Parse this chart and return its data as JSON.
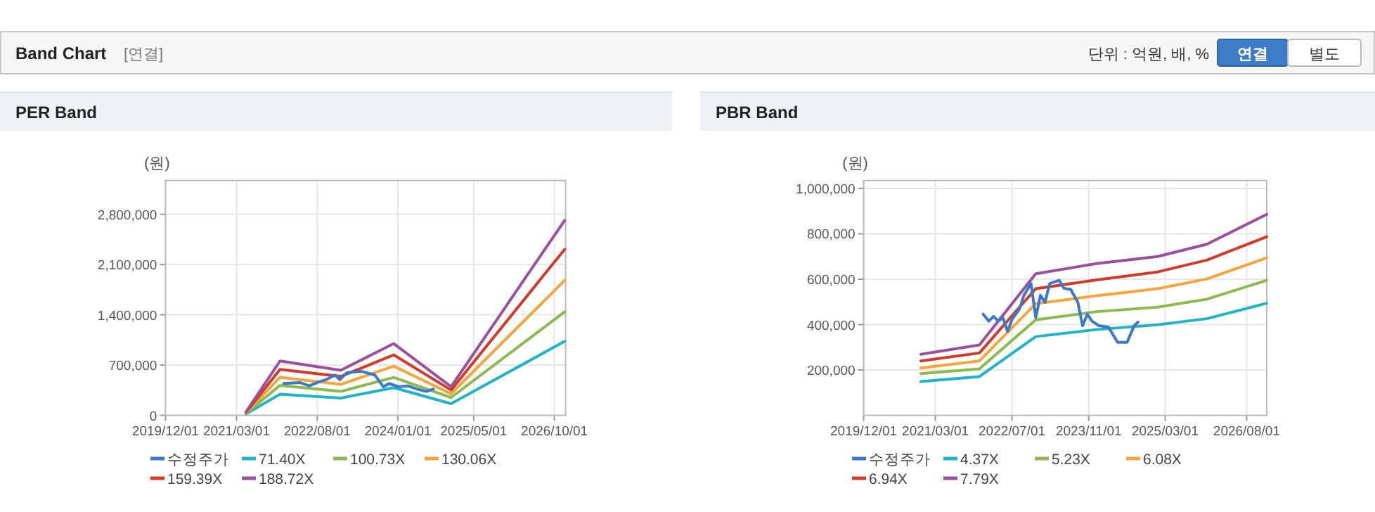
{
  "chart_data": [
    {
      "type": "other",
      "title": "Band Chart",
      "subtitle": "[연결]",
      "annotations": [
        "단위 : 억원, 배, %",
        "연결",
        "별도"
      ]
    },
    {
      "type": "line",
      "title": "PER Band",
      "ylabel": "(원)",
      "grid": true,
      "legend": "bottom",
      "line_style": "solid",
      "xlim": [
        "2019-12-01",
        "2026-12-12"
      ],
      "xticks": [
        {
          "value": "2019-12-01",
          "label": "2019/12/01"
        },
        {
          "value": "2021-03-01",
          "label": "2021/03/01"
        },
        {
          "value": "2022-08-01",
          "label": "2022/08/01"
        },
        {
          "value": "2024-01-01",
          "label": "2024/01/01"
        },
        {
          "value": "2025-05-01",
          "label": "2025/05/01"
        },
        {
          "value": "2026-10-01",
          "label": "2026/10/01"
        }
      ],
      "ylim": [
        0,
        3270000
      ],
      "yticks": [
        0,
        {
          "value": 700000,
          "label": "700,000"
        },
        {
          "value": 1400000,
          "label": "1,400,000"
        },
        {
          "value": 2100000,
          "label": "2,100,000"
        },
        {
          "value": 2800000,
          "label": "2,800,000"
        }
      ],
      "series": [
        {
          "name": "수정주가",
          "color": "#3a78c9",
          "x": [
            "2021-12-28",
            "2022-04-12",
            "2022-06-11",
            "2022-08-10",
            "2022-09-25",
            "2022-11-24",
            "2022-12-24",
            "2023-02-07",
            "2023-05-08",
            "2023-08-06",
            "2023-09-29",
            "2023-11-05",
            "2024-01-04",
            "2024-03-04",
            "2024-05-03",
            "2024-07-02",
            "2024-08-16"
          ],
          "values": [
            444000,
            457000,
            411000,
            464000,
            496000,
            561000,
            496000,
            594000,
            614000,
            561000,
            398000,
            444000,
            398000,
            411000,
            366000,
            333000,
            366000
          ]
        },
        {
          "name": "71.40X",
          "color": "#1fb5c8",
          "x": [
            "2021-05-01",
            "2021-12-05",
            "2022-12-30",
            "2023-12-05",
            "2024-12-07",
            "2026-12-06"
          ],
          "values": [
            20000,
            294000,
            241000,
            385000,
            163000,
            1031000
          ]
        },
        {
          "name": "100.73X",
          "color": "#8bbb4f",
          "x": [
            "2021-05-01",
            "2021-12-05",
            "2022-12-30",
            "2023-12-05",
            "2024-12-07",
            "2026-12-06"
          ],
          "values": [
            28000,
            418000,
            333000,
            529000,
            248000,
            1442000
          ]
        },
        {
          "name": "130.06X",
          "color": "#f5a53a",
          "x": [
            "2021-05-01",
            "2021-12-05",
            "2022-12-30",
            "2023-12-05",
            "2024-12-07",
            "2026-12-06"
          ],
          "values": [
            35000,
            529000,
            431000,
            685000,
            300000,
            1880000
          ]
        },
        {
          "name": "159.39X",
          "color": "#d33a2a",
          "x": [
            "2021-05-01",
            "2021-12-05",
            "2022-12-30",
            "2023-12-05",
            "2024-12-07",
            "2026-12-06"
          ],
          "values": [
            42000,
            640000,
            542000,
            842000,
            352000,
            2311000
          ]
        },
        {
          "name": "188.72X",
          "color": "#9b4f9e",
          "x": [
            "2021-05-01",
            "2021-12-05",
            "2022-12-30",
            "2023-12-05",
            "2024-12-07",
            "2026-12-06"
          ],
          "values": [
            50000,
            757000,
            627000,
            999000,
            398000,
            2715000
          ]
        }
      ]
    },
    {
      "type": "line",
      "title": "PBR Band",
      "ylabel": "(원)",
      "grid": true,
      "legend": "bottom",
      "line_style": "solid",
      "xlim": [
        "2019-12-01",
        "2026-12-07"
      ],
      "xticks": [
        {
          "value": "2019-12-01",
          "label": "2019/12/01"
        },
        {
          "value": "2021-03-01",
          "label": "2021/03/01"
        },
        {
          "value": "2022-07-01",
          "label": "2022/07/01"
        },
        {
          "value": "2023-11-01",
          "label": "2023/11/01"
        },
        {
          "value": "2025-03-01",
          "label": "2025/03/01"
        },
        {
          "value": "2026-08-01",
          "label": "2026/08/01"
        }
      ],
      "ylim": [
        0,
        1035000
      ],
      "yticks": [
        {
          "value": 200000,
          "label": "200,000"
        },
        {
          "value": 400000,
          "label": "400,000"
        },
        {
          "value": 600000,
          "label": "600,000"
        },
        {
          "value": 800000,
          "label": "800,000"
        },
        {
          "value": 1000000,
          "label": "1,000,000"
        }
      ],
      "series": [
        {
          "name": "수정주가",
          "color": "#3a78c9",
          "x": [
            "2021-12-30",
            "2022-02-04",
            "2022-03-06",
            "2022-04-04",
            "2022-05-04",
            "2022-06-03",
            "2022-07-03",
            "2022-08-17",
            "2022-09-15",
            "2022-10-30",
            "2022-11-29",
            "2022-12-29",
            "2023-01-27",
            "2023-02-26",
            "2023-04-27",
            "2023-05-27",
            "2023-07-10",
            "2023-08-24",
            "2023-09-23",
            "2023-10-23",
            "2023-11-22",
            "2024-01-05",
            "2024-03-05",
            "2024-05-03",
            "2024-07-02",
            "2024-08-16",
            "2024-09-09"
          ],
          "values": [
            446000,
            415000,
            436000,
            415000,
            430000,
            370000,
            425000,
            467000,
            529000,
            581000,
            430000,
            529000,
            498000,
            581000,
            595000,
            560000,
            554000,
            498000,
            395000,
            446000,
            415000,
            395000,
            389000,
            322000,
            322000,
            395000,
            411000
          ]
        },
        {
          "name": "4.37X",
          "color": "#1fb5c8",
          "x": [
            "2020-11-29",
            "2021-12-06",
            "2022-11-29",
            "2023-12-21",
            "2025-01-12",
            "2025-11-21",
            "2026-12-07"
          ],
          "values": [
            149000,
            171000,
            347000,
            378000,
            399000,
            426000,
            494000
          ]
        },
        {
          "name": "5.23X",
          "color": "#8bbb4f",
          "x": [
            "2020-11-29",
            "2021-12-06",
            "2022-11-29",
            "2023-12-21",
            "2025-01-12",
            "2025-11-21",
            "2026-12-07"
          ],
          "values": [
            184000,
            205000,
            421000,
            457000,
            477000,
            512000,
            595000
          ]
        },
        {
          "name": "6.08X",
          "color": "#f5a53a",
          "x": [
            "2020-11-29",
            "2021-12-06",
            "2022-11-29",
            "2023-12-21",
            "2025-01-12",
            "2025-11-21",
            "2026-12-07"
          ],
          "values": [
            209000,
            240000,
            492000,
            527000,
            558000,
            601000,
            694000
          ]
        },
        {
          "name": "6.94X",
          "color": "#d33a2a",
          "x": [
            "2020-11-29",
            "2021-12-06",
            "2022-11-29",
            "2023-12-21",
            "2025-01-12",
            "2025-11-21",
            "2026-12-07"
          ],
          "values": [
            240000,
            275000,
            558000,
            597000,
            632000,
            684000,
            787000
          ]
        },
        {
          "name": "7.79X",
          "color": "#9b4f9e",
          "x": [
            "2020-11-29",
            "2021-12-06",
            "2022-11-29",
            "2023-12-21",
            "2025-01-12",
            "2025-11-21",
            "2026-12-07"
          ],
          "values": [
            269000,
            310000,
            624000,
            669000,
            700000,
            754000,
            886000
          ]
        }
      ]
    }
  ]
}
